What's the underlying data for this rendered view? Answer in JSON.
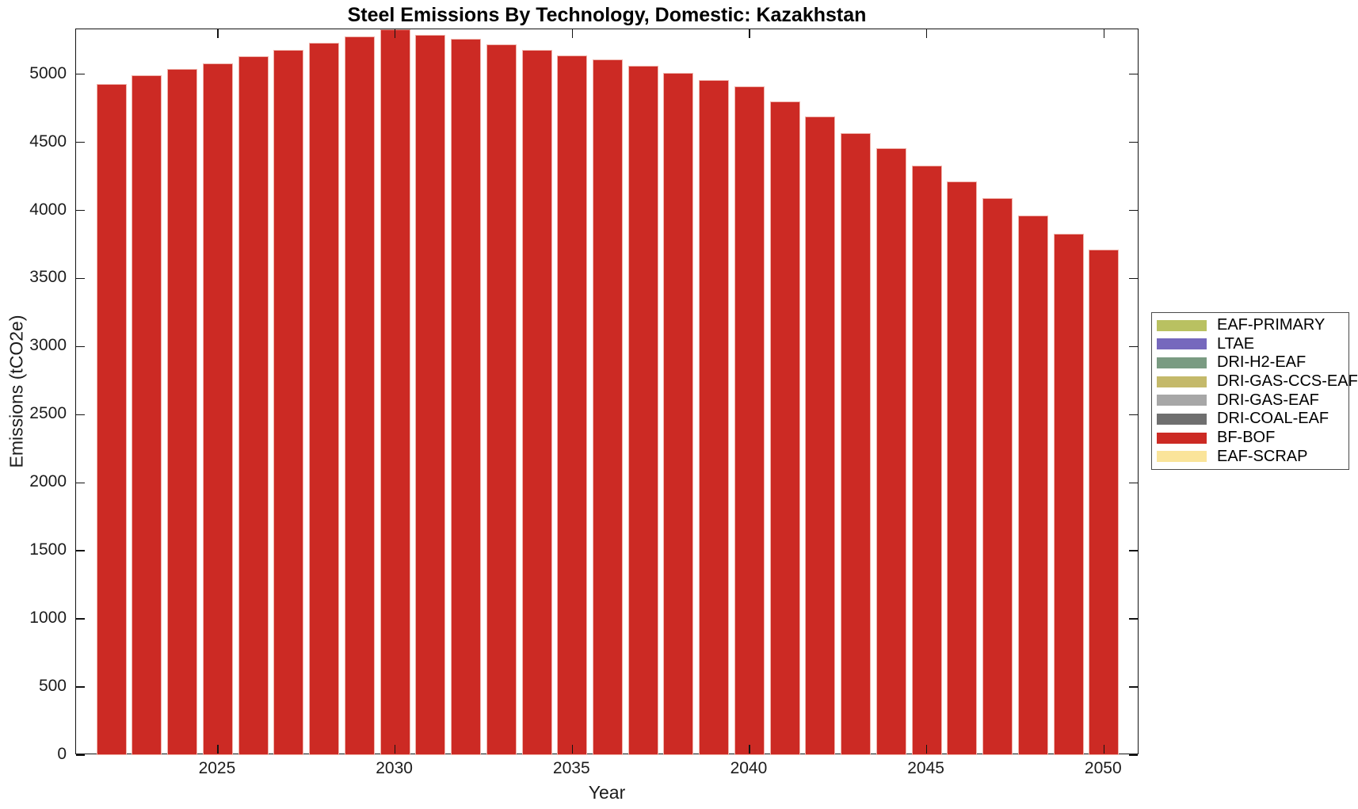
{
  "chart_data": {
    "type": "bar",
    "stacked": true,
    "title": "Steel Emissions By Technology, Domestic: Kazakhstan",
    "xlabel": "Year",
    "ylabel": "Emissions (tCO2e)",
    "categories": [
      2022,
      2023,
      2024,
      2025,
      2026,
      2027,
      2028,
      2029,
      2030,
      2031,
      2032,
      2033,
      2034,
      2035,
      2036,
      2037,
      2038,
      2039,
      2040,
      2041,
      2042,
      2043,
      2044,
      2045,
      2046,
      2047,
      2048,
      2049,
      2050
    ],
    "series": [
      {
        "name": "EAF-PRIMARY",
        "color": "#b9c161",
        "values": [
          0,
          0,
          0,
          0,
          0,
          0,
          0,
          0,
          0,
          0,
          0,
          0,
          0,
          0,
          0,
          0,
          0,
          0,
          0,
          0,
          0,
          0,
          0,
          0,
          0,
          0,
          0,
          0,
          0
        ]
      },
      {
        "name": "LTAE",
        "color": "#7668bd",
        "values": [
          0,
          0,
          0,
          0,
          0,
          0,
          0,
          0,
          0,
          0,
          0,
          0,
          0,
          0,
          0,
          0,
          0,
          0,
          0,
          0,
          0,
          0,
          0,
          0,
          0,
          0,
          0,
          0,
          0
        ]
      },
      {
        "name": "DRI-H2-EAF",
        "color": "#7a9b82",
        "values": [
          0,
          0,
          0,
          0,
          0,
          0,
          0,
          0,
          0,
          0,
          0,
          0,
          0,
          0,
          0,
          0,
          0,
          0,
          0,
          0,
          0,
          0,
          0,
          0,
          0,
          0,
          0,
          0,
          0
        ]
      },
      {
        "name": "DRI-GAS-CCS-EAF",
        "color": "#c4b96a",
        "values": [
          0,
          0,
          0,
          0,
          0,
          0,
          0,
          0,
          0,
          0,
          0,
          0,
          0,
          0,
          0,
          0,
          0,
          0,
          0,
          0,
          0,
          0,
          0,
          0,
          0,
          0,
          0,
          0,
          0
        ]
      },
      {
        "name": "DRI-GAS-EAF",
        "color": "#a7a7a7",
        "values": [
          0,
          0,
          0,
          0,
          0,
          0,
          0,
          0,
          0,
          0,
          0,
          0,
          0,
          0,
          0,
          0,
          0,
          0,
          0,
          0,
          0,
          0,
          0,
          0,
          0,
          0,
          0,
          0,
          0
        ]
      },
      {
        "name": "DRI-COAL-EAF",
        "color": "#6f6f6f",
        "values": [
          0,
          0,
          0,
          0,
          0,
          0,
          0,
          0,
          0,
          0,
          0,
          0,
          0,
          0,
          0,
          0,
          0,
          0,
          0,
          0,
          0,
          0,
          0,
          0,
          0,
          0,
          0,
          0,
          0
        ]
      },
      {
        "name": "BF-BOF",
        "color": "#cc2a24",
        "values": [
          4930,
          4990,
          5040,
          5080,
          5130,
          5180,
          5230,
          5280,
          5330,
          5290,
          5260,
          5220,
          5180,
          5140,
          5110,
          5060,
          5010,
          4960,
          4910,
          4800,
          4690,
          4570,
          4460,
          4330,
          4210,
          4090,
          3960,
          3830,
          3710
        ]
      },
      {
        "name": "EAF-SCRAP",
        "color": "#fae49a",
        "values": [
          0,
          0,
          0,
          0,
          0,
          0,
          0,
          0,
          0,
          0,
          0,
          0,
          0,
          0,
          0,
          0,
          0,
          0,
          0,
          0,
          0,
          0,
          0,
          0,
          0,
          0,
          0,
          0,
          0
        ]
      }
    ],
    "legend": {
      "position": "right-outside",
      "entries": [
        {
          "label": "EAF-PRIMARY",
          "color": "#b9c161"
        },
        {
          "label": "LTAE",
          "color": "#7668bd"
        },
        {
          "label": "DRI-H2-EAF",
          "color": "#7a9b82"
        },
        {
          "label": "DRI-GAS-CCS-EAF",
          "color": "#c4b96a"
        },
        {
          "label": "DRI-GAS-EAF",
          "color": "#a7a7a7"
        },
        {
          "label": "DRI-COAL-EAF",
          "color": "#6f6f6f"
        },
        {
          "label": "BF-BOF",
          "color": "#cc2a24"
        },
        {
          "label": "EAF-SCRAP",
          "color": "#fae49a"
        }
      ]
    },
    "xlim": [
      2021,
      2051
    ],
    "ylim": [
      0,
      5330
    ],
    "yticks": [
      0,
      500,
      1000,
      1500,
      2000,
      2500,
      3000,
      3500,
      4000,
      4500,
      5000
    ],
    "xticks": [
      2025,
      2030,
      2035,
      2040,
      2045,
      2050
    ],
    "grid": false,
    "bar_width_ratio": 0.85,
    "bar_edge_color": "#f0b4ac",
    "axis_color": "#141414"
  }
}
